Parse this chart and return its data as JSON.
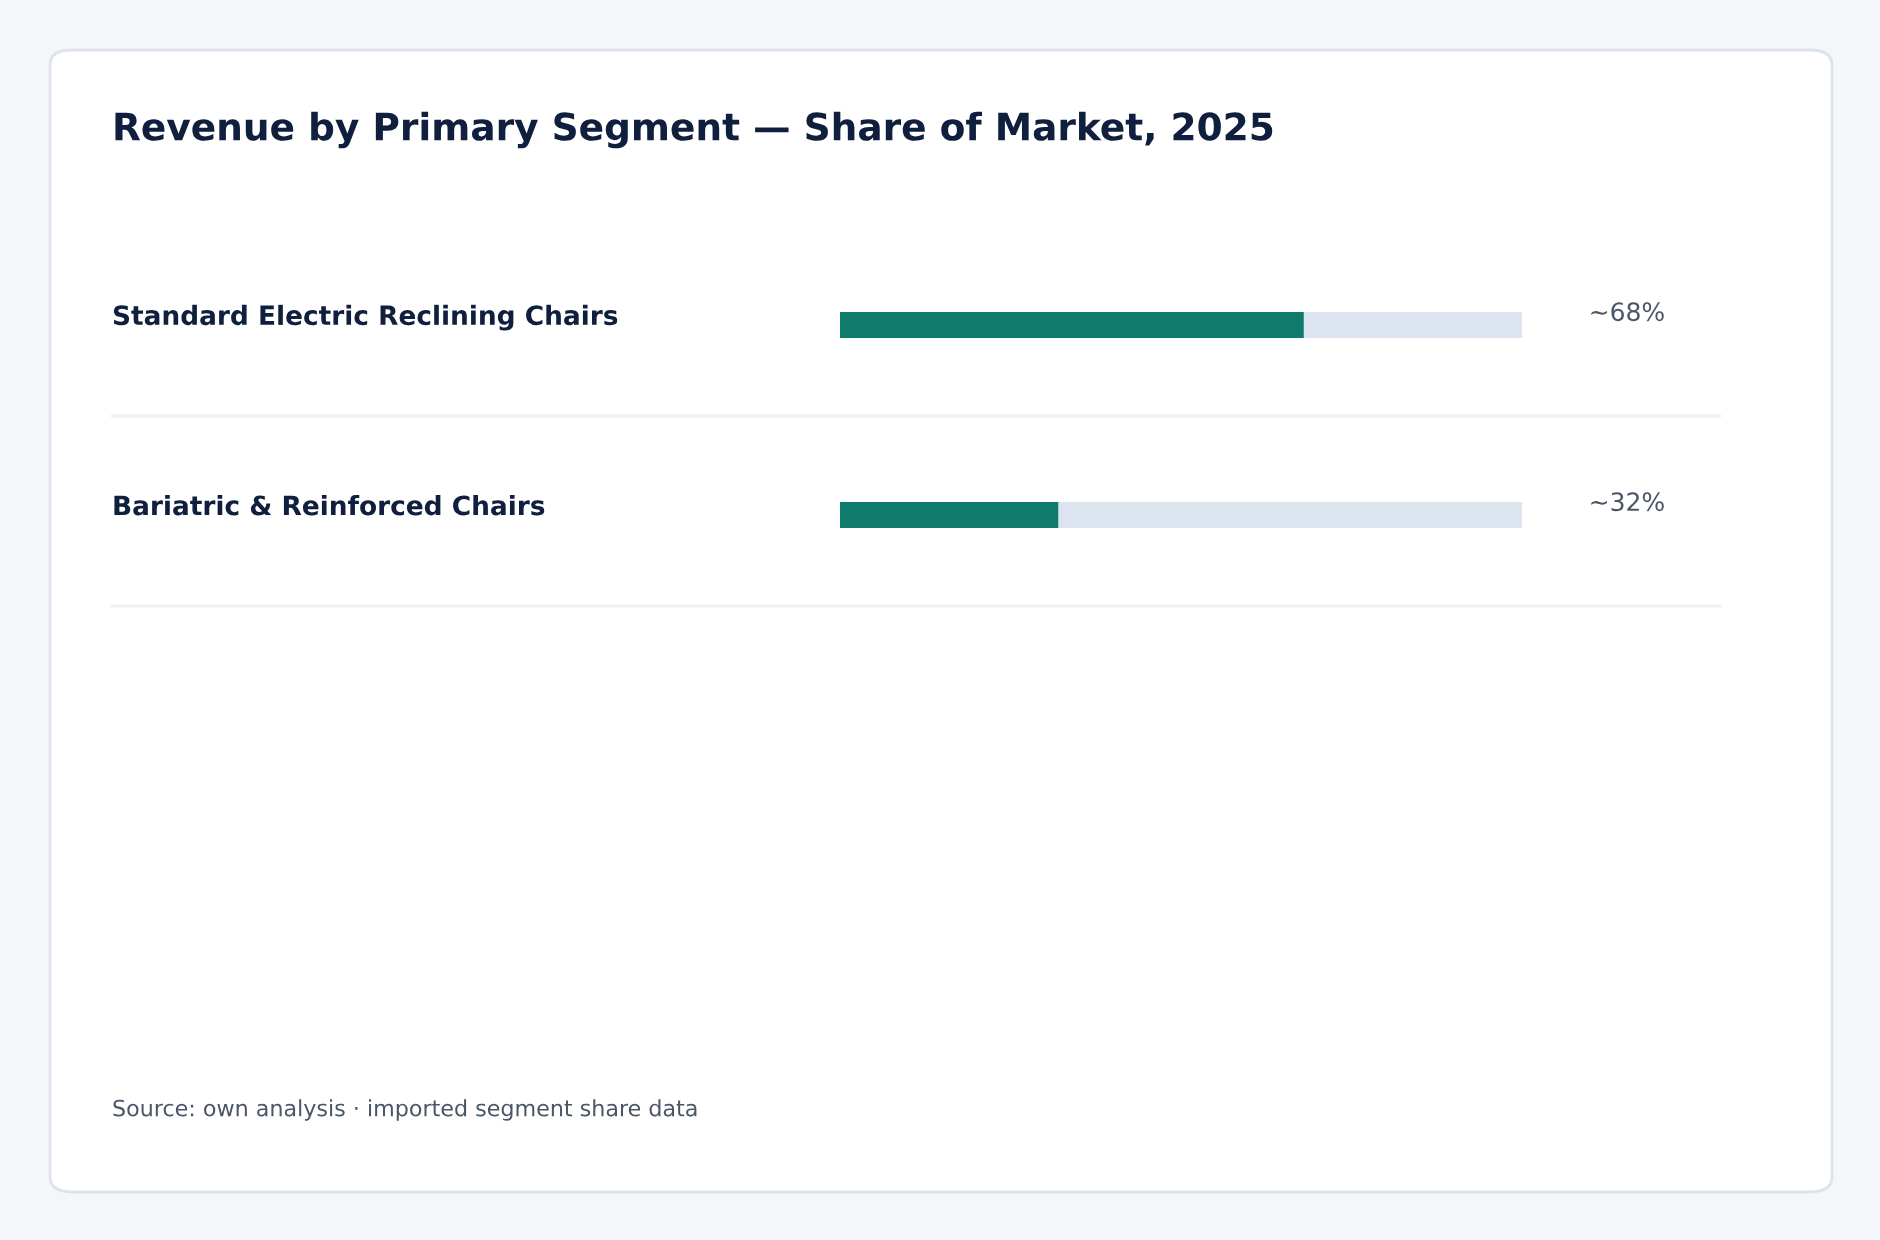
{
  "chart_data": {
    "type": "bar",
    "orientation": "horizontal",
    "title": "Revenue by Primary Segment — Share of Market, 2025",
    "categories": [
      "Standard Electric Reclining Chairs",
      "Bariatric & Reinforced Chairs"
    ],
    "values": [
      68,
      32
    ],
    "value_labels": [
      "~68%",
      "~32%"
    ],
    "color": "#0f7b6c",
    "xlim": [
      0,
      100
    ],
    "tick_labels": "y",
    "annotations": [
      "Source: own analysis · imported segment share data"
    ]
  }
}
